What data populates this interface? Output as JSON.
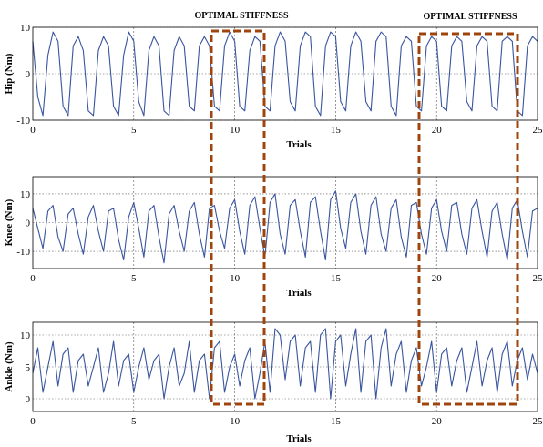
{
  "annotations": [
    {
      "text": "OPTIMAL STIFFNESS",
      "x_range": [
        8.8,
        11.5
      ]
    },
    {
      "text": "OPTIMAL STIFFNESS",
      "x_range": [
        19.2,
        24.0
      ]
    }
  ],
  "colors": {
    "signal": "#3a559f",
    "highlight": "#a0440e",
    "axis": "#000000",
    "grid": "#555555"
  },
  "chart_data": [
    {
      "type": "line",
      "ylabel": "Hip (Nm)",
      "xlabel": "Trials",
      "xlim": [
        0,
        25
      ],
      "ylim": [
        -10,
        10
      ],
      "xticks": [
        "0",
        "5",
        "10",
        "15",
        "20",
        "25"
      ],
      "yticks": [
        "10",
        "0",
        "-10"
      ],
      "grid": true,
      "series": [
        {
          "x_step": 0.25,
          "values": [
            7,
            -5,
            -9,
            4,
            9,
            7,
            -7,
            -9,
            6,
            8,
            5,
            -8,
            -9,
            5,
            8,
            6,
            -7,
            -9,
            4,
            9,
            7,
            -6,
            -9,
            5,
            8,
            6,
            -8,
            -9,
            5,
            8,
            6,
            -7,
            -8,
            6,
            8,
            6,
            -7,
            -8,
            6,
            9,
            7,
            -7,
            -8,
            5,
            8,
            7,
            -7,
            -8,
            6,
            9,
            7,
            -6,
            -8,
            6,
            9,
            8,
            -7,
            -9,
            6,
            9,
            8,
            -6,
            -8,
            6,
            9,
            7,
            -6,
            -8,
            7,
            9,
            8,
            -7,
            -9,
            6,
            8,
            7,
            -7,
            -8,
            6,
            8,
            7,
            -7,
            -8,
            6,
            8,
            7,
            -6,
            -8,
            6,
            8,
            7,
            -7,
            -8,
            7,
            8,
            7,
            -8,
            -9,
            6,
            8,
            7
          ]
        }
      ]
    },
    {
      "type": "line",
      "ylabel": "Knee (Nm)",
      "xlabel": "Trials",
      "xlim": [
        0,
        25
      ],
      "ylim": [
        -16,
        16
      ],
      "xticks": [
        "0",
        "5",
        "10",
        "15",
        "20",
        "25"
      ],
      "yticks": [
        "10",
        "0",
        "-10"
      ],
      "grid": true,
      "series": [
        {
          "x_step": 0.25,
          "values": [
            5,
            -2,
            -9,
            4,
            6,
            -5,
            -10,
            3,
            5,
            -4,
            -11,
            2,
            6,
            -3,
            -10,
            4,
            5,
            -6,
            -13,
            2,
            7,
            -2,
            -12,
            4,
            6,
            -5,
            -14,
            3,
            6,
            -3,
            -10,
            4,
            7,
            -4,
            -12,
            5,
            6,
            -3,
            -9,
            5,
            8,
            -3,
            -11,
            6,
            9,
            -2,
            -12,
            7,
            10,
            -4,
            -11,
            6,
            8,
            -3,
            -12,
            7,
            9,
            -3,
            -13,
            8,
            11,
            -2,
            -9,
            7,
            10,
            -3,
            -11,
            6,
            9,
            -4,
            -10,
            5,
            8,
            -5,
            -12,
            6,
            7,
            -4,
            -11,
            5,
            8,
            -3,
            -10,
            6,
            7,
            -4,
            -11,
            5,
            8,
            -3,
            -12,
            4,
            7,
            -4,
            -13,
            5,
            8,
            -3,
            -12,
            4,
            5
          ]
        }
      ]
    },
    {
      "type": "line",
      "ylabel": "Ankle (Nm)",
      "xlabel": "Trials",
      "xlim": [
        0,
        25
      ],
      "ylim": [
        -2,
        12
      ],
      "xticks": [
        "0",
        "5",
        "10",
        "15",
        "20",
        "25"
      ],
      "yticks": [
        "10",
        "5",
        "0"
      ],
      "grid": true,
      "series": [
        {
          "x_step": 0.25,
          "values": [
            4,
            8,
            1,
            5,
            9,
            2,
            7,
            8,
            1,
            6,
            7,
            2,
            5,
            8,
            1,
            4,
            9,
            2,
            6,
            7,
            1,
            5,
            8,
            3,
            6,
            7,
            0,
            5,
            8,
            2,
            4,
            9,
            1,
            6,
            7,
            0,
            8,
            9,
            1,
            5,
            7,
            2,
            6,
            8,
            0,
            4,
            9,
            1,
            11,
            10,
            3,
            9,
            10,
            2,
            8,
            9,
            1,
            10,
            11,
            0,
            9,
            10,
            2,
            7,
            11,
            1,
            9,
            10,
            0,
            8,
            11,
            2,
            7,
            9,
            1,
            6,
            8,
            2,
            5,
            9,
            1,
            7,
            8,
            2,
            6,
            8,
            1,
            5,
            9,
            2,
            6,
            8,
            1,
            7,
            9,
            2,
            6,
            8,
            3,
            7,
            4
          ]
        }
      ]
    }
  ]
}
